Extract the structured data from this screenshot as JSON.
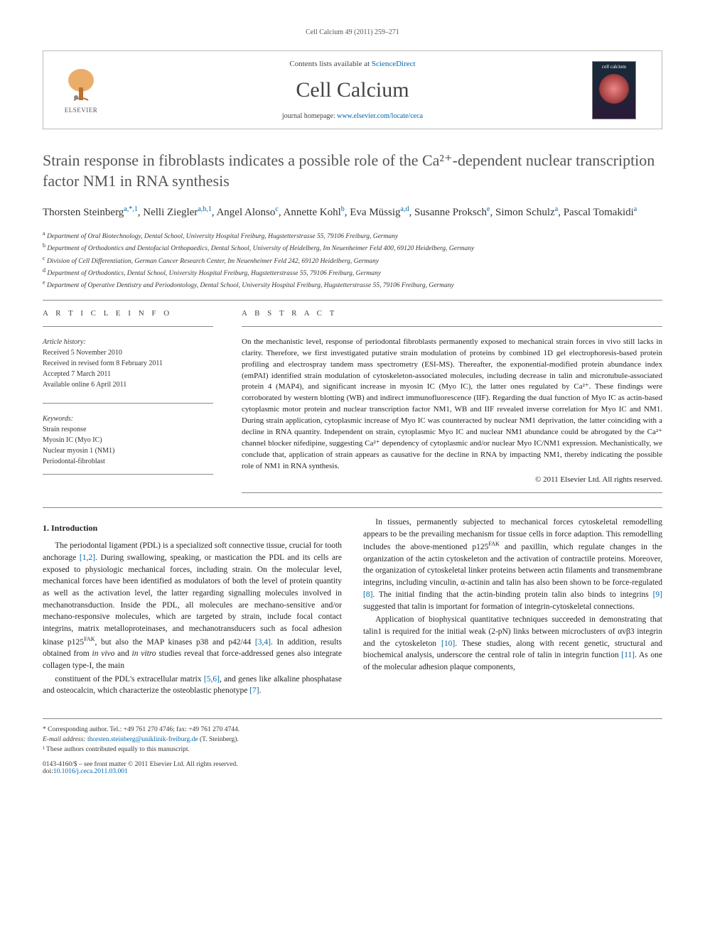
{
  "running_header": "Cell Calcium 49 (2011) 259–271",
  "masthead": {
    "contents_prefix": "Contents lists available at ",
    "sciencedirect": "ScienceDirect",
    "journal": "Cell Calcium",
    "homepage_prefix": "journal homepage: ",
    "homepage_url": "www.elsevier.com/locate/ceca",
    "publisher": "ELSEVIER",
    "cover_title": "cell calcium"
  },
  "title": "Strain response in fibroblasts indicates a possible role of the Ca²⁺-dependent nuclear transcription factor NM1 in RNA synthesis",
  "authors": [
    {
      "name": "Thorsten Steinberg",
      "aff": "a,*,1"
    },
    {
      "name": "Nelli Ziegler",
      "aff": "a,b,1"
    },
    {
      "name": "Angel Alonso",
      "aff": "c"
    },
    {
      "name": "Annette Kohl",
      "aff": "b"
    },
    {
      "name": "Eva Müssig",
      "aff": "a,d"
    },
    {
      "name": "Susanne Proksch",
      "aff": "e"
    },
    {
      "name": "Simon Schulz",
      "aff": "a"
    },
    {
      "name": "Pascal Tomakidi",
      "aff": "a"
    }
  ],
  "affiliations": [
    {
      "sup": "a",
      "text": "Department of Oral Biotechnology, Dental School, University Hospital Freiburg, Hugstetterstrasse 55, 79106 Freiburg, Germany"
    },
    {
      "sup": "b",
      "text": "Department of Orthodontics and Dentofacial Orthopaedics, Dental School, University of Heidelberg, Im Neuenheimer Feld 400, 69120 Heidelberg, Germany"
    },
    {
      "sup": "c",
      "text": "Division of Cell Differentiation, German Cancer Research Center, Im Neuenheimer Feld 242, 69120 Heidelberg, Germany"
    },
    {
      "sup": "d",
      "text": "Department of Orthodontics, Dental School, University Hospital Freiburg, Hugstetterstrasse 55, 79106 Freiburg, Germany"
    },
    {
      "sup": "e",
      "text": "Department of Operative Dentistry and Periodontology, Dental School, University Hospital Freiburg, Hugstetterstrasse 55, 79106 Freiburg, Germany"
    }
  ],
  "article_info_label": "a r t i c l e   i n f o",
  "abstract_label": "a b s t r a c t",
  "history": {
    "label": "Article history:",
    "received": "Received 5 November 2010",
    "revised": "Received in revised form 8 February 2011",
    "accepted": "Accepted 7 March 2011",
    "online": "Available online 6 April 2011"
  },
  "keywords": {
    "label": "Keywords:",
    "items": [
      "Strain response",
      "Myosin IC (Myo IC)",
      "Nuclear myosin 1 (NM1)",
      "Periodontal-fibroblast"
    ]
  },
  "abstract": "On the mechanistic level, response of periodontal fibroblasts permanently exposed to mechanical strain forces in vivo still lacks in clarity. Therefore, we first investigated putative strain modulation of proteins by combined 1D gel electrophoresis-based protein profiling and electrospray tandem mass spectrometry (ESI-MS). Thereafter, the exponential-modified protein abundance index (emPAI) identified strain modulation of cytoskeleton-associated molecules, including decrease in talin and microtubule-associated protein 4 (MAP4), and significant increase in myosin IC (Myo IC), the latter ones regulated by Ca²⁺. These findings were corroborated by western blotting (WB) and indirect immunofluorescence (IIF). Regarding the dual function of Myo IC as actin-based cytoplasmic motor protein and nuclear transcription factor NM1, WB and IIF revealed inverse correlation for Myo IC and NM1. During strain application, cytoplasmic increase of Myo IC was counteracted by nuclear NM1 deprivation, the latter coinciding with a decline in RNA quantity. Independent on strain, cytoplasmic Myo IC and nuclear NM1 abundance could be abrogated by the Ca²⁺ channel blocker nifedipine, suggesting Ca²⁺ dependency of cytoplasmic and/or nuclear Myo IC/NM1 expression. Mechanistically, we conclude that, application of strain appears as causative for the decline in RNA by impacting NM1, thereby indicating the possible role of NM1 in RNA synthesis.",
  "copyright": "© 2011 Elsevier Ltd. All rights reserved.",
  "intro_heading": "1. Introduction",
  "body": {
    "p1": "The periodontal ligament (PDL) is a specialized soft connective tissue, crucial for tooth anchorage [1,2]. During swallowing, speaking, or mastication the PDL and its cells are exposed to physiologic mechanical forces, including strain. On the molecular level, mechanical forces have been identified as modulators of both the level of protein quantity as well as the activation level, the latter regarding signalling molecules involved in mechanotransduction. Inside the PDL, all molecules are mechano-sensitive and/or mechano-responsive molecules, which are targeted by strain, include focal contact integrins, matrix metalloproteinases, and mechanotransducers such as focal adhesion kinase p125FAK, but also the MAP kinases p38 and p42/44 [3,4]. In addition, results obtained from in vivo and in vitro studies reveal that force-addressed genes also integrate collagen type-I, the main",
    "p2": "constituent of the PDL's extracellular matrix [5,6], and genes like alkaline phosphatase and osteocalcin, which characterize the osteoblastic phenotype [7].",
    "p3": "In tissues, permanently subjected to mechanical forces cytoskeletal remodelling appears to be the prevailing mechanism for tissue cells in force adaption. This remodelling includes the above-mentioned p125FAK and paxillin, which regulate changes in the organization of the actin cytoskeleton and the activation of contractile proteins. Moreover, the organization of cytoskeletal linker proteins between actin filaments and transmembrane integrins, including vinculin, α-actinin and talin has also been shown to be force-regulated [8]. The initial finding that the actin-binding protein talin also binds to integrins [9] suggested that talin is important for formation of integrin-cytoskeletal connections.",
    "p4": "Application of biophysical quantitative techniques succeeded in demonstrating that talin1 is required for the initial weak (2-pN) links between microclusters of αvβ3 integrin and the cytoskeleton [10]. These studies, along with recent genetic, structural and biochemical analysis, underscore the central role of talin in integrin function [11]. As one of the molecular adhesion plaque components,"
  },
  "footer": {
    "corresponding": "* Corresponding author. Tel.: +49 761 270 4746; fax: +49 761 270 4744.",
    "email_label": "E-mail address: ",
    "email": "thorsten.steinberg@uniklinik-freiburg.de",
    "email_suffix": " (T. Steinberg).",
    "equal": "¹ These authors contributed equally to this manuscript.",
    "issn": "0143-4160/$ – see front matter © 2011 Elsevier Ltd. All rights reserved.",
    "doi_label": "doi:",
    "doi": "10.1016/j.ceca.2011.03.001"
  }
}
